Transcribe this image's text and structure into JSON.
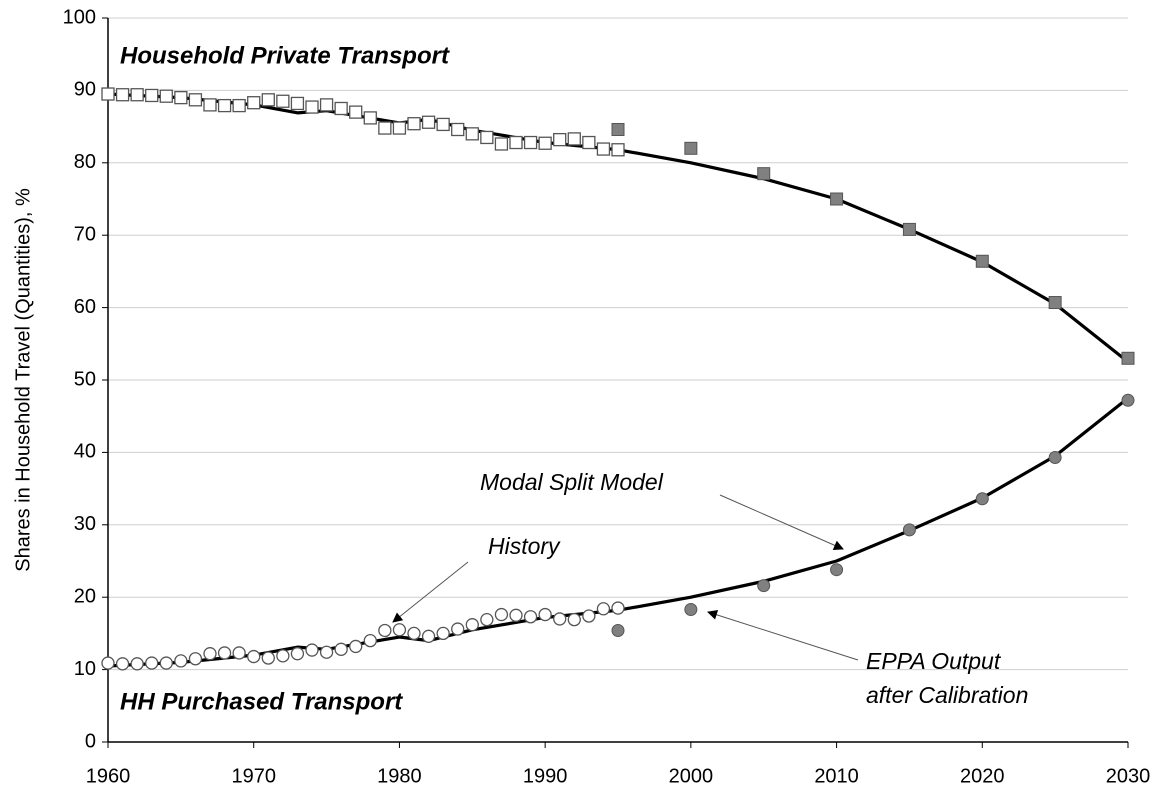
{
  "chart_data": {
    "type": "line",
    "ylabel": "Shares in Household Travel (Quantities), %",
    "xlim": [
      1960,
      2030
    ],
    "xticks": [
      1960,
      1970,
      1980,
      1990,
      2000,
      2010,
      2020,
      2030
    ],
    "ylim": [
      0,
      100
    ],
    "yticks": [
      0,
      10,
      20,
      30,
      40,
      50,
      60,
      70,
      80,
      90,
      100
    ],
    "grid": true,
    "annotations": [
      "Household Private Transport",
      "HH Purchased Transport",
      "Modal Split Model",
      "History",
      "EPPA Output",
      "after Calibration"
    ],
    "series": [
      {
        "color": "#000000",
        "marker": "none",
        "line": true,
        "x": [
          1960,
          1965,
          1970,
          1973,
          1975,
          1980,
          1982,
          1985,
          1990,
          1995,
          2000,
          2005,
          2010,
          2015,
          2020,
          2025,
          2030
        ],
        "values": [
          89.5,
          89.0,
          88.0,
          86.9,
          87.2,
          85.5,
          86.0,
          84.5,
          82.8,
          81.8,
          80.0,
          77.8,
          75.0,
          70.8,
          66.3,
          60.5,
          52.5
        ]
      },
      {
        "color": "#000000",
        "marker": "none",
        "line": true,
        "x": [
          1960,
          1965,
          1970,
          1973,
          1975,
          1980,
          1982,
          1985,
          1990,
          1995,
          2000,
          2005,
          2010,
          2015,
          2020,
          2025,
          2030
        ],
        "values": [
          10.5,
          11.0,
          12.0,
          13.1,
          12.8,
          14.5,
          14.0,
          15.5,
          17.2,
          18.2,
          20.0,
          22.2,
          25.0,
          29.2,
          33.7,
          39.5,
          47.5
        ]
      },
      {
        "color": "#555555",
        "marker": "square-open",
        "line": false,
        "x": [
          1960,
          1961,
          1962,
          1963,
          1964,
          1965,
          1966,
          1967,
          1968,
          1969,
          1970,
          1971,
          1972,
          1973,
          1974,
          1975,
          1976,
          1977,
          1978,
          1979,
          1980,
          1981,
          1982,
          1983,
          1984,
          1985,
          1986,
          1987,
          1988,
          1989,
          1990,
          1991,
          1992,
          1993,
          1994,
          1995
        ],
        "values": [
          89.5,
          89.4,
          89.4,
          89.3,
          89.2,
          89.0,
          88.7,
          88.0,
          87.9,
          87.9,
          88.3,
          88.7,
          88.5,
          88.2,
          87.7,
          88.0,
          87.5,
          87.0,
          86.2,
          84.8,
          84.8,
          85.4,
          85.6,
          85.3,
          84.6,
          84.0,
          83.5,
          82.6,
          82.8,
          82.8,
          82.7,
          83.2,
          83.3,
          82.8,
          81.9,
          81.8
        ]
      },
      {
        "color": "#555555",
        "marker": "circle-open",
        "line": false,
        "x": [
          1960,
          1961,
          1962,
          1963,
          1964,
          1965,
          1966,
          1967,
          1968,
          1969,
          1970,
          1971,
          1972,
          1973,
          1974,
          1975,
          1976,
          1977,
          1978,
          1979,
          1980,
          1981,
          1982,
          1983,
          1984,
          1985,
          1986,
          1987,
          1988,
          1989,
          1990,
          1991,
          1992,
          1993,
          1994,
          1995
        ],
        "values": [
          10.9,
          10.8,
          10.8,
          10.9,
          10.9,
          11.2,
          11.5,
          12.2,
          12.3,
          12.3,
          11.8,
          11.6,
          11.9,
          12.2,
          12.7,
          12.4,
          12.8,
          13.2,
          14.0,
          15.4,
          15.5,
          15.0,
          14.6,
          15.0,
          15.6,
          16.2,
          16.9,
          17.6,
          17.5,
          17.3,
          17.6,
          17.0,
          16.9,
          17.4,
          18.4,
          18.5
        ]
      },
      {
        "color": "#808080",
        "marker": "square",
        "line": false,
        "x": [
          1995,
          2000,
          2005,
          2010,
          2015,
          2020,
          2025,
          2030
        ],
        "values": [
          84.6,
          82.0,
          78.5,
          75.0,
          70.8,
          66.4,
          60.7,
          53.0
        ]
      },
      {
        "color": "#808080",
        "marker": "circle",
        "line": false,
        "x": [
          1995,
          2000,
          2005,
          2010,
          2015,
          2020,
          2025,
          2030
        ],
        "values": [
          15.4,
          18.3,
          21.6,
          23.8,
          29.3,
          33.6,
          39.3,
          47.2
        ]
      }
    ]
  }
}
